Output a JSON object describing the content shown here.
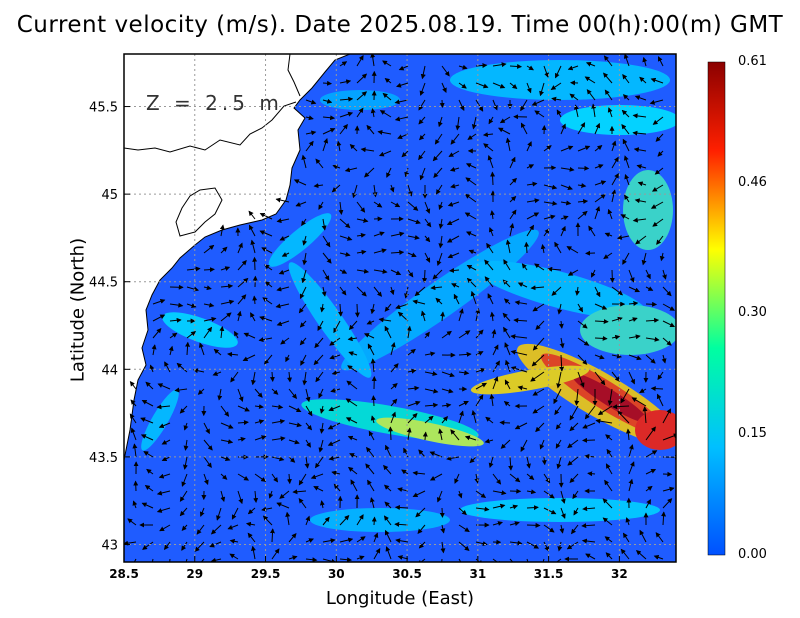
{
  "title": "Current velocity (m/s). Date 2025.08.19. Time 00(h):00(m) GMT",
  "depth_label": "Z = 2.5 m",
  "x_axis": {
    "label": "Longitude (East)",
    "ticks": [
      "28.5",
      "29",
      "29.5",
      "30",
      "30.5",
      "31",
      "31.5",
      "32"
    ],
    "values": [
      28.5,
      29,
      29.5,
      30,
      30.5,
      31,
      31.5,
      32
    ],
    "range": [
      28.5,
      32.4
    ]
  },
  "y_axis": {
    "label": "Latitude (North)",
    "ticks": [
      "43",
      "43.5",
      "44",
      "44.5",
      "45",
      "45.5"
    ],
    "values": [
      43,
      43.5,
      44,
      44.5,
      45,
      45.5
    ],
    "range": [
      42.9,
      45.8
    ]
  },
  "colorbar": {
    "ticks": [
      "0.61",
      "0.46",
      "0.30",
      "0.15",
      "0.00"
    ],
    "values": [
      0.61,
      0.46,
      0.3,
      0.15,
      0.0
    ],
    "colors": [
      "#8b0000",
      "#ff2000",
      "#ffff00",
      "#00ffa0",
      "#00c0ff",
      "#0050ff"
    ]
  },
  "colors": {
    "land": "#ffffff",
    "coast": "#000000",
    "grid": "#999999",
    "arrow": "#000000"
  }
}
